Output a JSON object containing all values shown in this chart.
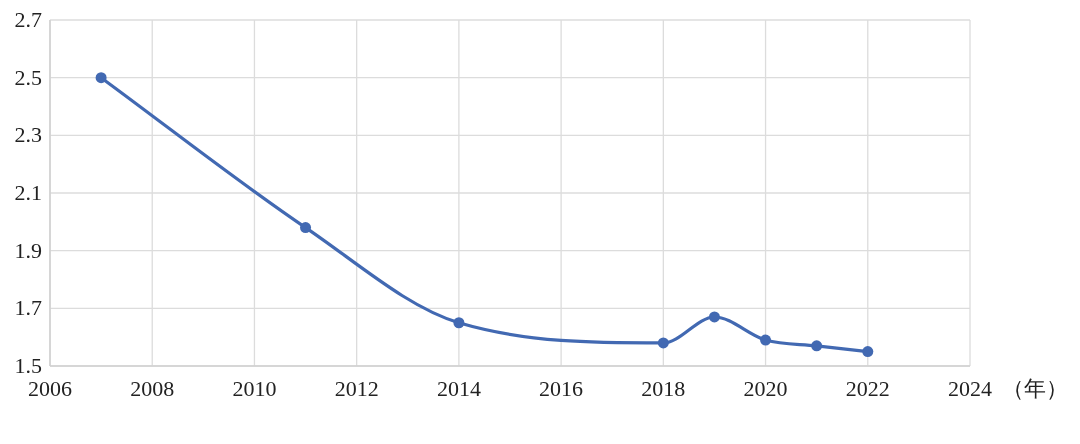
{
  "chart_data": {
    "type": "line",
    "xlabel": "（年）",
    "x": [
      2007,
      2011,
      2014,
      2018,
      2019,
      2020,
      2021,
      2022
    ],
    "series": [
      {
        "color": "#4269b2",
        "values": [
          2.5,
          1.98,
          1.65,
          1.58,
          1.67,
          1.59,
          1.57,
          1.55
        ]
      }
    ],
    "xlim": [
      2006,
      2024
    ],
    "xticks": [
      2006,
      2008,
      2010,
      2012,
      2014,
      2016,
      2018,
      2020,
      2022,
      2024
    ],
    "ylim": [
      1.5,
      2.7
    ],
    "yticks": [
      1.5,
      1.7,
      1.9,
      2.1,
      2.3,
      2.5,
      2.7
    ],
    "grid": true,
    "marker": "circle",
    "line_style": "solid"
  }
}
